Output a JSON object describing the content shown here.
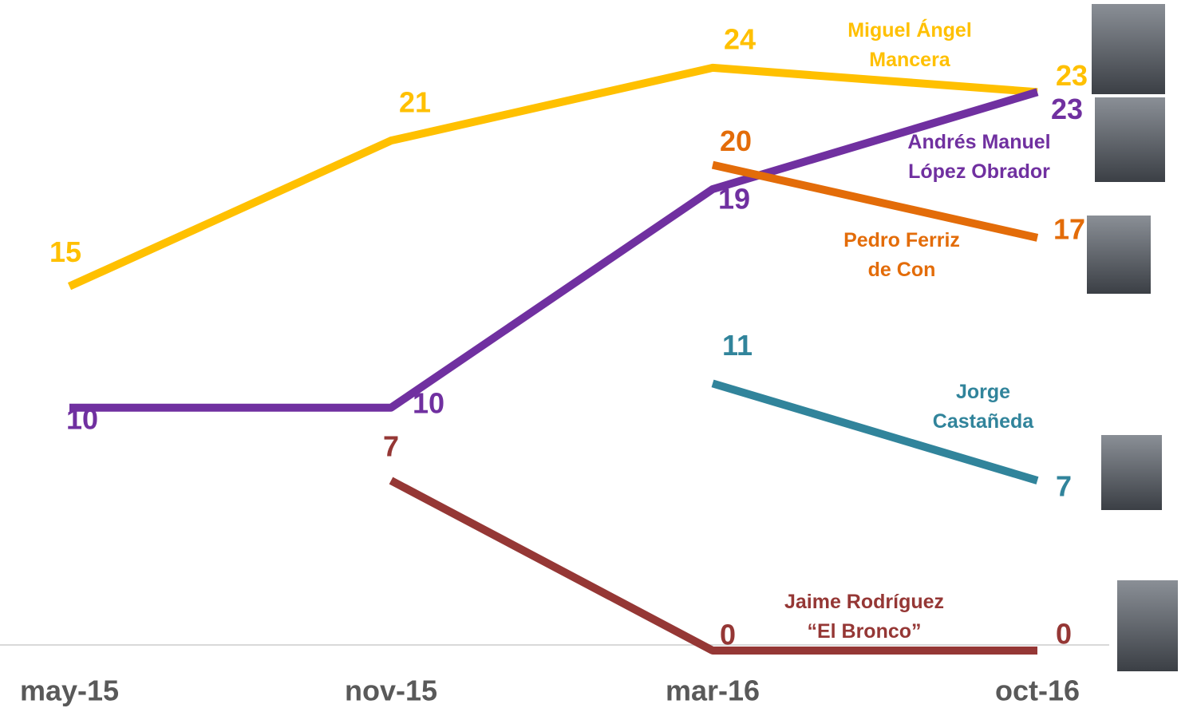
{
  "chart_data": {
    "type": "line",
    "categories": [
      "may-15",
      "nov-15",
      "mar-16",
      "oct-16"
    ],
    "series": [
      {
        "name": "Miguel Ángel\nMancera",
        "color": "#FFC000",
        "values": [
          15,
          21,
          24,
          23
        ]
      },
      {
        "name": "Andrés Manuel\nLópez Obrador",
        "color": "#7030A0",
        "values": [
          10,
          10,
          19,
          23
        ]
      },
      {
        "name": "Pedro Ferriz\nde Con",
        "color": "#E36C09",
        "values": [
          null,
          null,
          20,
          17
        ]
      },
      {
        "name": "Jorge\nCastañeda",
        "color": "#31849B",
        "values": [
          null,
          null,
          11,
          7
        ]
      },
      {
        "name": "Jaime Rodríguez\n“El Bronco”",
        "color": "#953735",
        "values": [
          null,
          7,
          0,
          0
        ]
      }
    ]
  }
}
